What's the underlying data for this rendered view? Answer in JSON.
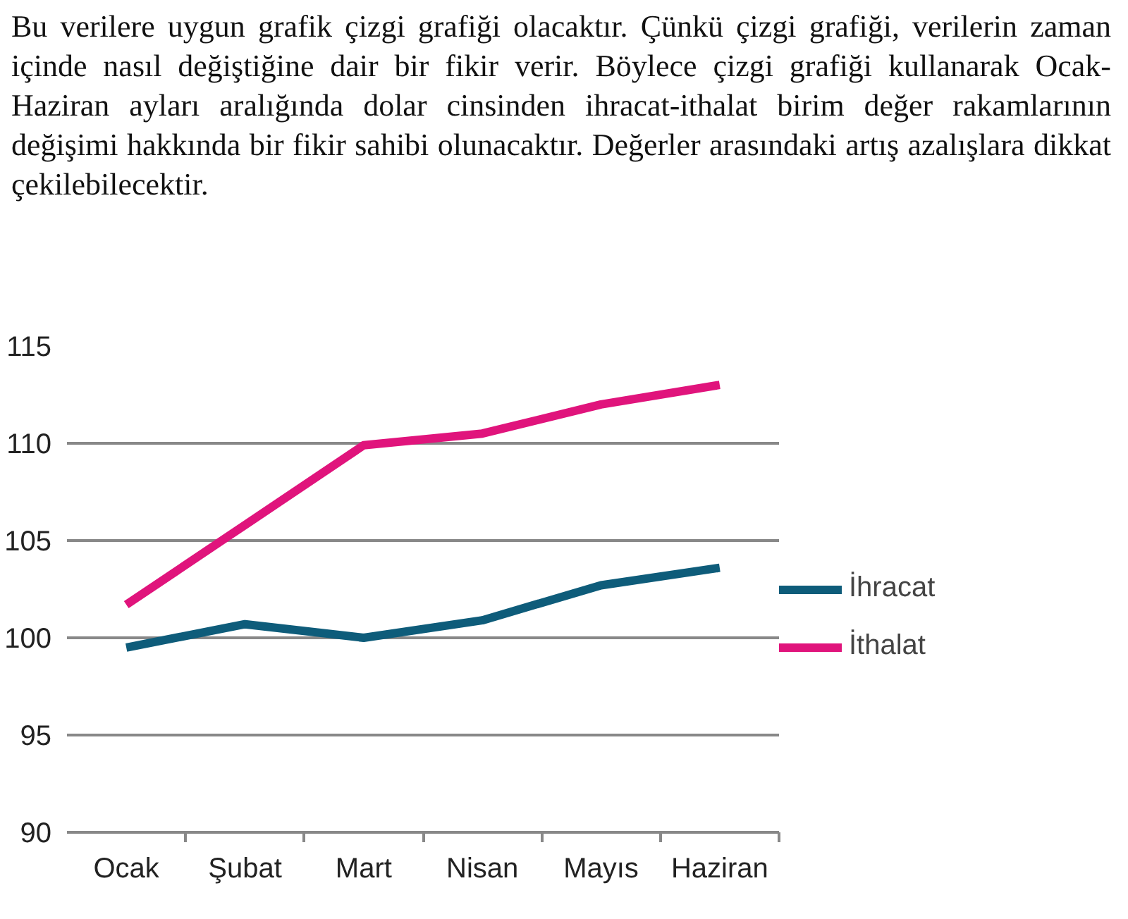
{
  "chart_data": {
    "type": "line",
    "annotations": [
      "Bu verilere uygun grafik çizgi grafiği olacaktır. Çünkü çizgi grafiği, verilerin zaman içinde nasıl değiştiğine dair bir fikir verir. Böylece çizgi grafiği kullanarak Ocak-Haziran ayları aralığında dolar cinsinden ihracat-ithalat birim değer rakamlarının değişimi hakkında bir fikir sahibi olunacaktır. Değerler arasındaki artış azalışlara dikkat çekilebilecektir."
    ],
    "categories": [
      "Ocak",
      "Şubat",
      "Mart",
      "Nisan",
      "Mayıs",
      "Haziran"
    ],
    "series": [
      {
        "name": "İhracat",
        "color": "#0e5c7a",
        "values": [
          99.5,
          100.7,
          100.0,
          100.9,
          102.7,
          103.6
        ]
      },
      {
        "name": "İthalat",
        "color": "#e0147c",
        "values": [
          101.7,
          105.8,
          109.9,
          110.5,
          112.0,
          113.0
        ]
      }
    ],
    "ylim": [
      90,
      115
    ],
    "yticks": [
      90,
      95,
      100,
      105,
      110,
      115
    ],
    "grid": "y",
    "legend": "right"
  }
}
